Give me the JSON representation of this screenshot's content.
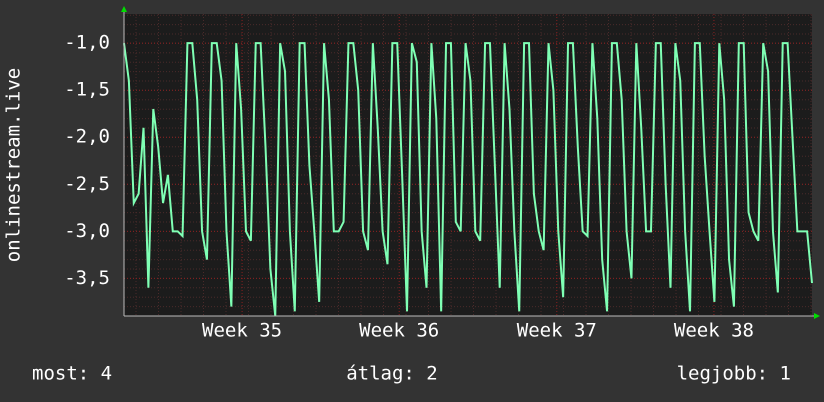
{
  "chart_data": {
    "type": "line",
    "y_label": "onlinestream.live",
    "series": [
      {
        "name": "onlinestream.live",
        "color": "#7fffb4",
        "values": [
          -1,
          -1.4,
          -2.7,
          -2.6,
          -1.9,
          -3.6,
          -1.7,
          -2.1,
          -2.7,
          -2.4,
          -3,
          -3,
          -3.05,
          -1,
          -1,
          -1.6,
          -3,
          -3.3,
          -1,
          -1,
          -1.4,
          -3,
          -3.8,
          -1,
          -1.7,
          -3,
          -3.1,
          -1,
          -1,
          -2.1,
          -3.4,
          -3.9,
          -1,
          -1.3,
          -3,
          -3.85,
          -1,
          -1,
          -2.3,
          -3,
          -3.75,
          -1,
          -1.6,
          -3,
          -3,
          -2.9,
          -1,
          -1,
          -1.5,
          -3,
          -3.2,
          -1,
          -1.9,
          -3,
          -3.35,
          -1,
          -1,
          -2.4,
          -3.85,
          -1,
          -1.2,
          -3,
          -3.6,
          -1,
          -1.8,
          -3.85,
          -1,
          -1,
          -2.9,
          -3,
          -1,
          -1.4,
          -3,
          -3.1,
          -1,
          -1,
          -2.3,
          -3.6,
          -1,
          -1.7,
          -3,
          -3.85,
          -1,
          -1,
          -2.6,
          -3,
          -3.2,
          -1,
          -1.5,
          -3,
          -3.7,
          -1,
          -1,
          -2.1,
          -3,
          -3.05,
          -1,
          -1.8,
          -3.3,
          -3.85,
          -1,
          -1,
          -1.6,
          -3,
          -3.5,
          -1,
          -1.9,
          -3,
          -3,
          -1,
          -1,
          -2.5,
          -3.6,
          -1,
          -1.4,
          -3,
          -3.85,
          -1,
          -1,
          -2.2,
          -3,
          -3.75,
          -1,
          -1.6,
          -3.3,
          -3.8,
          -1,
          -1,
          -2.8,
          -3,
          -3.1,
          -1,
          -1.3,
          -3,
          -3.65,
          -1,
          -1,
          -2,
          -3,
          -3,
          -3,
          -3.55
        ]
      }
    ],
    "xlim": [
      0,
      141
    ],
    "xticks": [
      {
        "value": 24.2,
        "label": "Week 35"
      },
      {
        "value": 56.4,
        "label": "Week 36"
      },
      {
        "value": 88.7,
        "label": "Week 37"
      },
      {
        "value": 120.9,
        "label": "Week 38"
      }
    ],
    "ylim": [
      -3.9,
      -0.69
    ],
    "yticks": [
      {
        "value": -1.0,
        "label": "-1,0"
      },
      {
        "value": -1.5,
        "label": "-1,5"
      },
      {
        "value": -2.0,
        "label": "-2,0"
      },
      {
        "value": -2.5,
        "label": "-2,5"
      },
      {
        "value": -3.0,
        "label": "-3,0"
      },
      {
        "value": -3.5,
        "label": "-3,5"
      }
    ],
    "grid": true,
    "footer": {
      "current": "most: 4",
      "average": "átlag: 2",
      "best": "legjobb: 1"
    }
  }
}
